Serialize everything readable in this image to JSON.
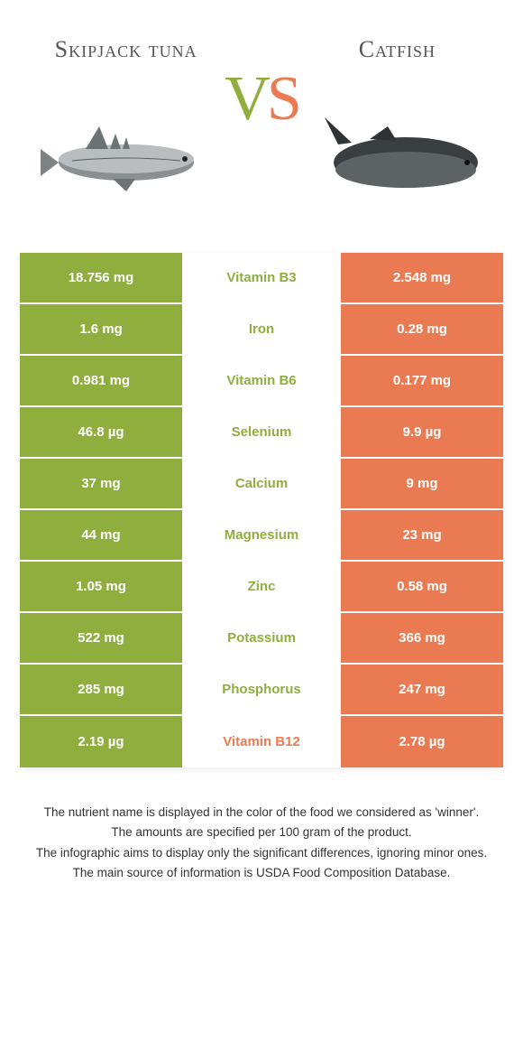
{
  "colors": {
    "left": "#8fae3e",
    "right": "#e97a52",
    "bg": "#ffffff"
  },
  "header": {
    "left_title": "Skipjack tuna",
    "right_title": "Catfish",
    "vs_v": "V",
    "vs_s": "S"
  },
  "rows": [
    {
      "left": "18.756 mg",
      "label": "Vitamin B3",
      "right": "2.548 mg",
      "winner": "left"
    },
    {
      "left": "1.6 mg",
      "label": "Iron",
      "right": "0.28 mg",
      "winner": "left"
    },
    {
      "left": "0.981 mg",
      "label": "Vitamin B6",
      "right": "0.177 mg",
      "winner": "left"
    },
    {
      "left": "46.8 µg",
      "label": "Selenium",
      "right": "9.9 µg",
      "winner": "left"
    },
    {
      "left": "37 mg",
      "label": "Calcium",
      "right": "9 mg",
      "winner": "left"
    },
    {
      "left": "44 mg",
      "label": "Magnesium",
      "right": "23 mg",
      "winner": "left"
    },
    {
      "left": "1.05 mg",
      "label": "Zinc",
      "right": "0.58 mg",
      "winner": "left"
    },
    {
      "left": "522 mg",
      "label": "Potassium",
      "right": "366 mg",
      "winner": "left"
    },
    {
      "left": "285 mg",
      "label": "Phosphorus",
      "right": "247 mg",
      "winner": "left"
    },
    {
      "left": "2.19 µg",
      "label": "Vitamin B12",
      "right": "2.78 µg",
      "winner": "right"
    }
  ],
  "footnotes": [
    "The nutrient name is displayed in the color of the food we considered as 'winner'.",
    "The amounts are specified per 100 gram of the product.",
    "The infographic aims to display only the significant differences, ignoring minor ones.",
    "The main source of information is USDA Food Composition Database."
  ]
}
